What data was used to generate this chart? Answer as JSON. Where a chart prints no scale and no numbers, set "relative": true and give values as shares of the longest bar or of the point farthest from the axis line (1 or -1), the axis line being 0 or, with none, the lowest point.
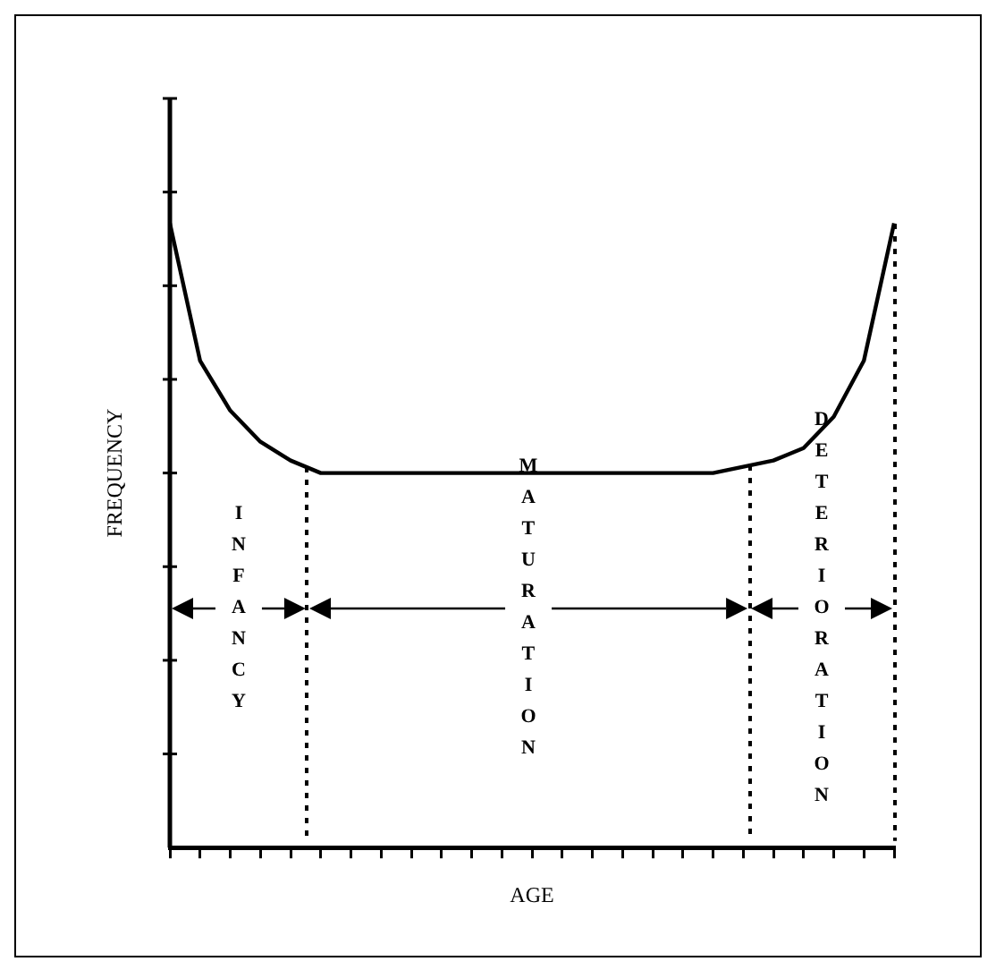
{
  "chart_data": {
    "type": "line",
    "relative": true,
    "xlabel": "AGE",
    "ylabel": "FREQUENCY",
    "categories": [
      null,
      null,
      null,
      null,
      null,
      null,
      null,
      null,
      null,
      null,
      null,
      null,
      null,
      null,
      null,
      null,
      null,
      null,
      null,
      null,
      null,
      null,
      null,
      null,
      null
    ],
    "series": [
      {
        "color": "#000000",
        "values": [
          1.0,
          0.78,
          0.7,
          0.65,
          0.62,
          0.6,
          0.6,
          0.6,
          0.6,
          0.6,
          0.6,
          0.6,
          0.6,
          0.6,
          0.6,
          0.6,
          0.6,
          0.6,
          0.6,
          0.61,
          0.62,
          0.64,
          0.69,
          0.78,
          1.0
        ]
      }
    ],
    "annotations": [
      "INFANCY",
      "MATURATION",
      "DETERIORATION"
    ],
    "grid": false,
    "legend": false,
    "tick_labels": false,
    "marker": "none",
    "line_style": "solid"
  }
}
